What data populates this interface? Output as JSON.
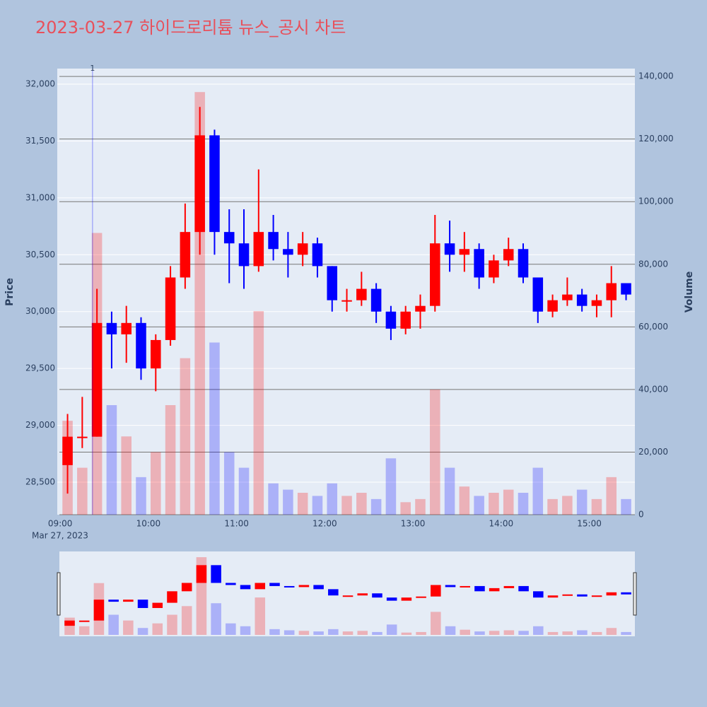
{
  "chart_data": {
    "type": "candlestick",
    "title": "2023-03-27 하이드로리튬 뉴스_공시 차트",
    "y_label": "Price",
    "y2_label": "Volume",
    "x_date_label": "Mar 27, 2023",
    "x": [
      "09:00",
      "09:10",
      "09:20",
      "09:30",
      "09:40",
      "09:50",
      "10:00",
      "10:10",
      "10:20",
      "10:30",
      "10:40",
      "10:50",
      "11:00",
      "11:10",
      "11:20",
      "11:30",
      "11:40",
      "11:50",
      "12:00",
      "12:10",
      "12:20",
      "12:30",
      "12:40",
      "12:50",
      "13:00",
      "13:10",
      "13:20",
      "13:30",
      "13:40",
      "13:50",
      "14:00",
      "14:10",
      "14:20",
      "14:30",
      "14:40",
      "14:50",
      "15:00",
      "15:10",
      "15:20"
    ],
    "open": [
      28650,
      28900,
      28900,
      29900,
      29800,
      29900,
      29500,
      29750,
      30300,
      30700,
      31550,
      30700,
      30600,
      30400,
      30700,
      30550,
      30500,
      30600,
      30400,
      30100,
      30100,
      30200,
      30000,
      29850,
      30000,
      30050,
      30600,
      30500,
      30550,
      30300,
      30450,
      30550,
      30300,
      30000,
      30100,
      30150,
      30050,
      30100,
      30250
    ],
    "high": [
      29100,
      29250,
      30200,
      30000,
      30050,
      29950,
      29800,
      30400,
      30950,
      31800,
      31600,
      30900,
      30900,
      31250,
      30850,
      30700,
      30700,
      30650,
      30400,
      30200,
      30350,
      30250,
      30050,
      30050,
      30150,
      30850,
      30800,
      30700,
      30600,
      30500,
      30650,
      30600,
      30300,
      30150,
      30300,
      30200,
      30150,
      30400,
      30250
    ],
    "low": [
      28400,
      28800,
      28900,
      29500,
      29550,
      29400,
      29300,
      29700,
      30200,
      30500,
      30500,
      30250,
      30200,
      30350,
      30450,
      30300,
      30400,
      30300,
      30000,
      30000,
      30050,
      29900,
      29750,
      29800,
      29850,
      30000,
      30350,
      30350,
      30200,
      30250,
      30400,
      30250,
      29900,
      29950,
      30050,
      30000,
      29950,
      29950,
      30100
    ],
    "close": [
      28900,
      28900,
      29900,
      29800,
      29900,
      29500,
      29750,
      30300,
      30700,
      31550,
      30700,
      30600,
      30400,
      30700,
      30550,
      30500,
      30600,
      30400,
      30100,
      30100,
      30200,
      30000,
      29850,
      30000,
      30050,
      30600,
      30500,
      30550,
      30300,
      30450,
      30550,
      30300,
      30000,
      30100,
      30150,
      30050,
      30100,
      30250,
      30150
    ],
    "volume": [
      30000,
      15000,
      90000,
      35000,
      25000,
      12000,
      20000,
      35000,
      50000,
      135000,
      55000,
      20000,
      15000,
      65000,
      10000,
      8000,
      7000,
      6000,
      10000,
      6000,
      7000,
      5000,
      18000,
      4000,
      5000,
      40000,
      15000,
      9000,
      6000,
      7000,
      8000,
      7000,
      15000,
      5000,
      6000,
      8000,
      5000,
      12000,
      5000
    ],
    "up_color": "#ff0000",
    "down_color": "#0000ff",
    "xlim": [
      "08:58",
      "15:31"
    ],
    "xticks": [
      "09:00",
      "10:00",
      "11:00",
      "12:00",
      "13:00",
      "14:00",
      "15:00"
    ],
    "ylim": [
      28214,
      32137
    ],
    "yticks": [
      {
        "value": 28500,
        "label": "28,500"
      },
      {
        "value": 29000,
        "label": "29,000"
      },
      {
        "value": 29500,
        "label": "29,500"
      },
      {
        "value": 30000,
        "label": "30,000"
      },
      {
        "value": 30500,
        "label": "30,500"
      },
      {
        "value": 31000,
        "label": "31,000"
      },
      {
        "value": 31500,
        "label": "31,500"
      },
      {
        "value": 32000,
        "label": "32,000"
      }
    ],
    "y2lim": [
      0,
      142500
    ],
    "y2ticks": [
      0,
      {
        "value": 20000,
        "label": "20,000"
      },
      {
        "value": 40000,
        "label": "40,000"
      },
      {
        "value": 60000,
        "label": "60,000"
      },
      {
        "value": 80000,
        "label": "80,000"
      },
      {
        "value": 100000,
        "label": "100,000"
      },
      {
        "value": 120000,
        "label": "120,000"
      },
      {
        "value": 140000,
        "label": "140,000"
      }
    ],
    "annotations": [
      {
        "x": "09:22",
        "text": "1"
      }
    ],
    "grid": true
  }
}
